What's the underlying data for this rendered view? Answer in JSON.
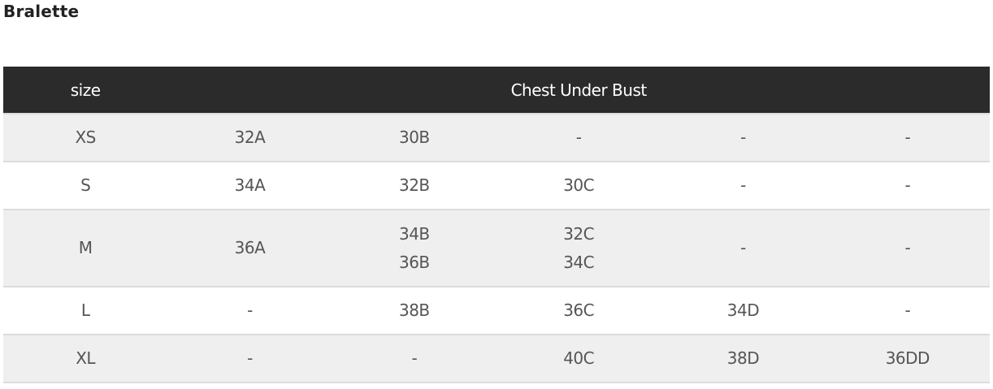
{
  "title": "Bralette",
  "header": {
    "size": "size",
    "group": "Chest Under Bust"
  },
  "rows": [
    {
      "size": "XS",
      "cells": [
        [
          "32A"
        ],
        [
          "30B"
        ],
        [
          "-"
        ],
        [
          "-"
        ],
        [
          "-"
        ]
      ]
    },
    {
      "size": "S",
      "cells": [
        [
          "34A"
        ],
        [
          "32B"
        ],
        [
          "30C"
        ],
        [
          "-"
        ],
        [
          "-"
        ]
      ]
    },
    {
      "size": "M",
      "cells": [
        [
          "36A"
        ],
        [
          "34B",
          "36B"
        ],
        [
          "32C",
          "34C"
        ],
        [
          "-"
        ],
        [
          "-"
        ]
      ]
    },
    {
      "size": "L",
      "cells": [
        [
          "-"
        ],
        [
          "38B"
        ],
        [
          "36C"
        ],
        [
          "34D"
        ],
        [
          "-"
        ]
      ]
    },
    {
      "size": "XL",
      "cells": [
        [
          "-"
        ],
        [
          "-"
        ],
        [
          "40C"
        ],
        [
          "38D"
        ],
        [
          "36DD"
        ]
      ]
    }
  ],
  "colors": {
    "header_bg": "#2b2b2b",
    "stripe": "#efefef"
  }
}
